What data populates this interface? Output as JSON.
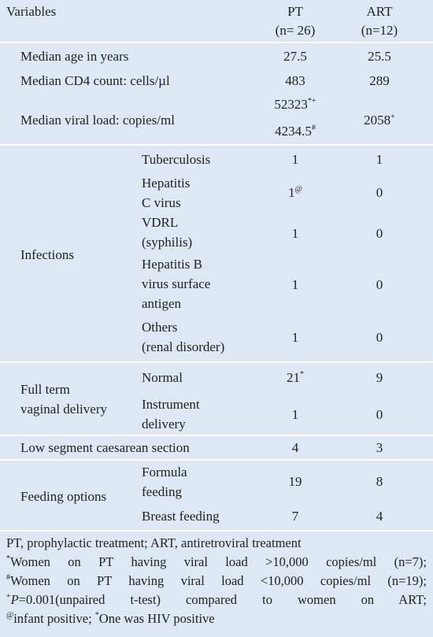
{
  "header": {
    "variables": "Variables",
    "pt": "PT",
    "pt_n": "(n= 26)",
    "art": "ART",
    "art_n": "(n=12)"
  },
  "rows": {
    "age": {
      "label": "Median age in years",
      "pt": "27.5",
      "art": "25.5"
    },
    "cd4": {
      "label": "Median CD4 count: cells/µl",
      "pt": "483",
      "art": "289"
    },
    "viral": {
      "label": "Median viral load: copies/ml",
      "pt1": "52323",
      "pt1_sup": "*+",
      "pt2": "4234.5",
      "pt2_sup": "#",
      "art": "2058",
      "art_sup": "+"
    },
    "infections": {
      "label": "Infections",
      "items": [
        {
          "lines": [
            "Tuberculosis"
          ],
          "pt": "1",
          "art": "1"
        },
        {
          "lines": [
            "Hepatitis",
            "C virus"
          ],
          "pt": "1",
          "pt_sup": "@",
          "art": "0"
        },
        {
          "lines": [
            "VDRL",
            "(syphilis)"
          ],
          "pt": "1",
          "art": "0"
        },
        {
          "lines": [
            "Hepatitis B",
            "virus surface",
            "antigen"
          ],
          "pt": "1",
          "art": "0"
        },
        {
          "lines": [
            "Others",
            "(renal disorder)"
          ],
          "pt": "1",
          "art": "0"
        }
      ]
    },
    "delivery": {
      "label": [
        "Full term",
        "vaginal delivery"
      ],
      "items": [
        {
          "lines": [
            "Normal"
          ],
          "pt": "21",
          "pt_sup": "*",
          "art": "9"
        },
        {
          "lines": [
            "Instrument",
            "delivery"
          ],
          "pt": "1",
          "art": "0"
        }
      ]
    },
    "lscs": {
      "label": "Low segment caesarean section",
      "pt": "4",
      "art": "3"
    },
    "feeding": {
      "label": "Feeding options",
      "items": [
        {
          "lines": [
            "Formula",
            "feeding"
          ],
          "pt": "19",
          "art": "8"
        },
        {
          "lines": [
            "Breast feeding"
          ],
          "pt": "7",
          "art": "4"
        }
      ]
    }
  },
  "footnotes": [
    {
      "text": "PT, prophylactic treatment; ART, antiretroviral treatment"
    },
    {
      "sup": "*",
      "text": "Women on PT having viral load >10,000 copies/ml (n=7);"
    },
    {
      "sup": "#",
      "text": "Women on PT having viral load <10,000 copies/ml (n=19);"
    },
    {
      "sup": "+",
      "italic": "P",
      "text": "=0.001(unpaired t-test) compared to women on ART;"
    },
    {
      "sup": "@",
      "text": "infant positive; ",
      "sup2": "*",
      "text2": "One was HIV positive"
    }
  ]
}
